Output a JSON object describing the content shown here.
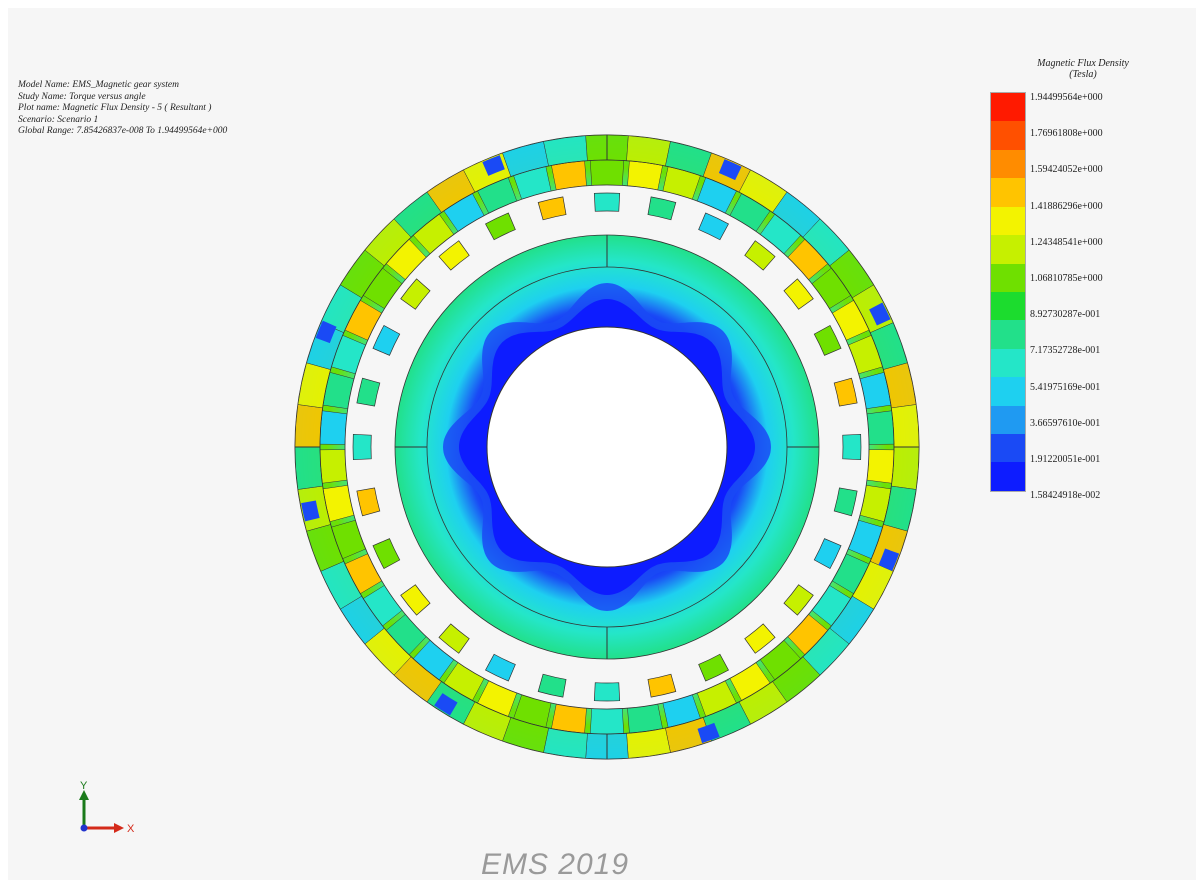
{
  "info": {
    "model_name": "Model Name: EMS_Magnetic gear system",
    "study_name": "Study Name: Torque versus angle",
    "plot_name": "Plot name: Magnetic Flux Density - 5 ( Resultant )",
    "scenario": "Scenario: Scenario 1",
    "global_range": "Global Range: 7.85426837e-008 To 1.94499564e+000"
  },
  "legend": {
    "title": "Magnetic Flux Density",
    "unit": "(Tesla)",
    "colors": [
      "#ff1a00",
      "#ff5000",
      "#ff8c00",
      "#ffc400",
      "#f3f300",
      "#c6f000",
      "#6fe000",
      "#1cdc2e",
      "#22e08a",
      "#24e6c8",
      "#1ed0f0",
      "#1f9af2",
      "#1a4af5",
      "#0d1cff"
    ],
    "labels": [
      "1.94499564e+000",
      "1.76961808e+000",
      "1.59424052e+000",
      "1.41886296e+000",
      "1.24348541e+000",
      "1.06810785e+000",
      "8.92730287e-001",
      "7.17352728e-001",
      "5.41975169e-001",
      "3.66597610e-001",
      "1.91220051e-001",
      "1.58424918e-002"
    ]
  },
  "triad": {
    "x_label": "X",
    "y_label": "Y"
  },
  "watermark": "EMS 2019"
}
